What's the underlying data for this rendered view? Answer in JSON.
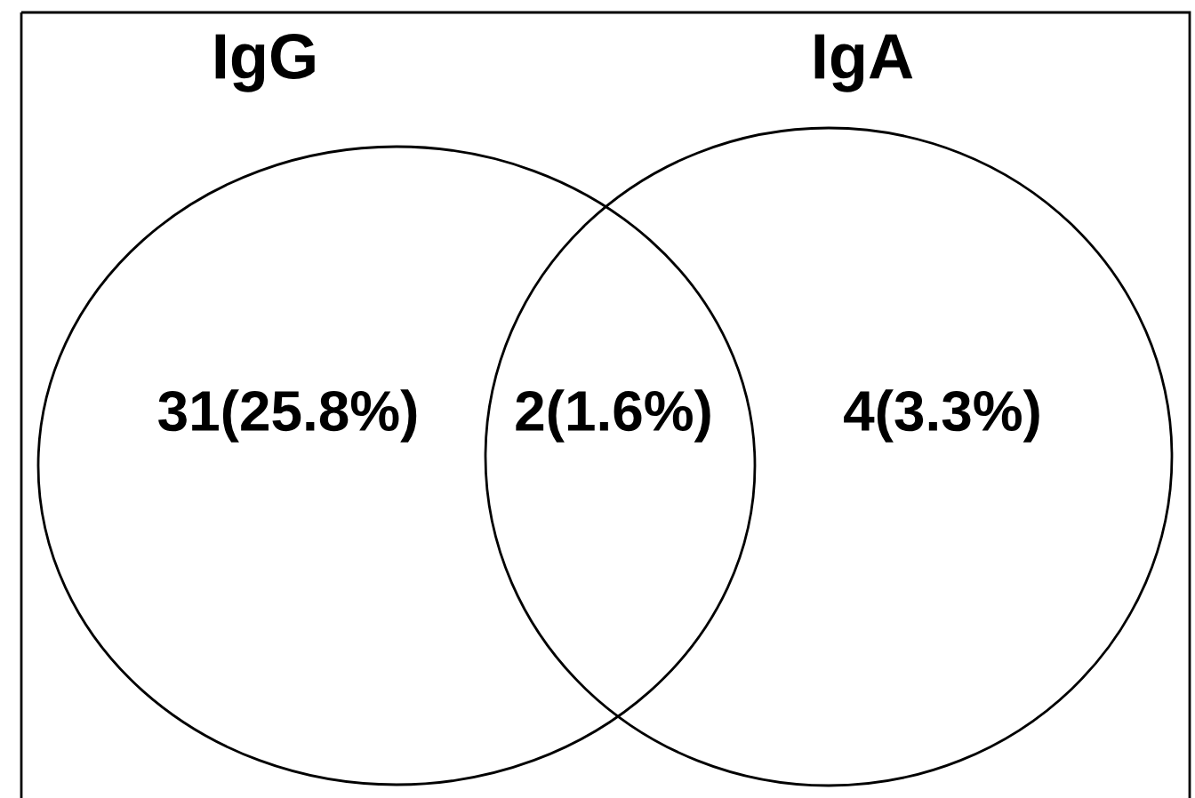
{
  "chart_data": {
    "type": "other",
    "annotations": [
      "IgG",
      "IgA"
    ],
    "categories": [
      null,
      null,
      null
    ],
    "values": [
      31,
      2,
      4
    ],
    "value_labels": [
      "31(25.8%)",
      "2(1.6%)",
      "4(3.3%)"
    ]
  }
}
